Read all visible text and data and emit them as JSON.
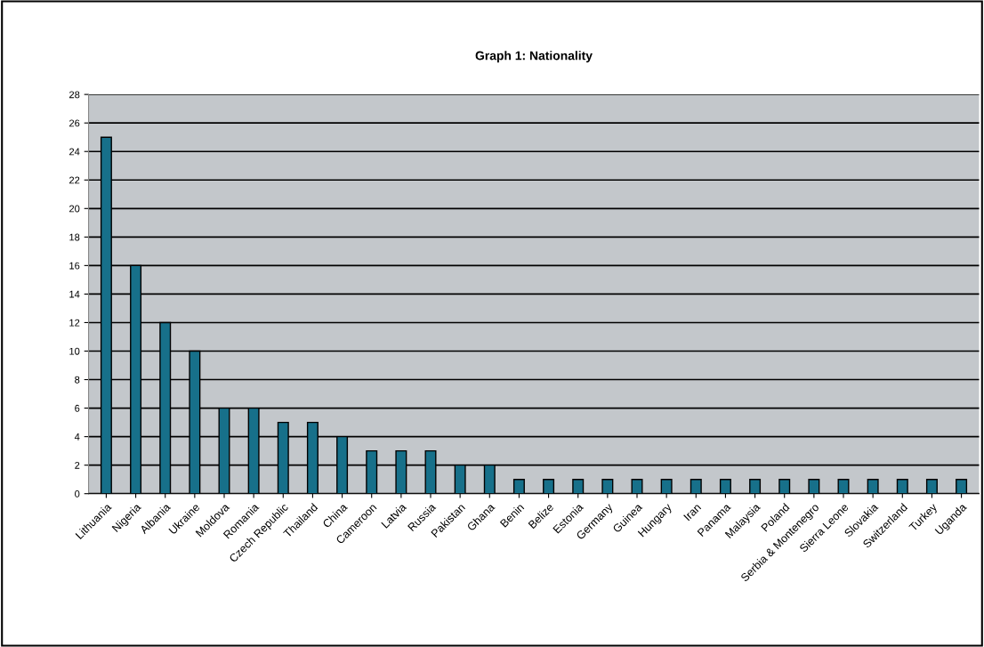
{
  "chart_data": {
    "type": "bar",
    "title": "Graph 1: Nationality",
    "categories": [
      "Lithuania",
      "Nigeria",
      "Albania",
      "Ukraine",
      "Moldova",
      "Romania",
      "Czech Republic",
      "Thailand",
      "China",
      "Cameroon",
      "Latvia",
      "Russia",
      "Pakistan",
      "Ghana",
      "Benin",
      "Belize",
      "Estonia",
      "Germany",
      "Guinea",
      "Hungary",
      "Iran",
      "Panama",
      "Malaysia",
      "Poland",
      "Serbia & Montenegro",
      "Sierra Leone",
      "Slovakia",
      "Switzerland",
      "Turkey",
      "Uganda"
    ],
    "values": [
      25,
      16,
      12,
      10,
      6,
      6,
      5,
      5,
      4,
      3,
      3,
      3,
      2,
      2,
      1,
      1,
      1,
      1,
      1,
      1,
      1,
      1,
      1,
      1,
      1,
      1,
      1,
      1,
      1,
      1
    ],
    "color": "#17708a",
    "ylim": [
      0,
      28
    ],
    "yticks": [
      0,
      2,
      4,
      6,
      8,
      10,
      12,
      14,
      16,
      18,
      20,
      22,
      24,
      26,
      28
    ],
    "grid": "y"
  }
}
